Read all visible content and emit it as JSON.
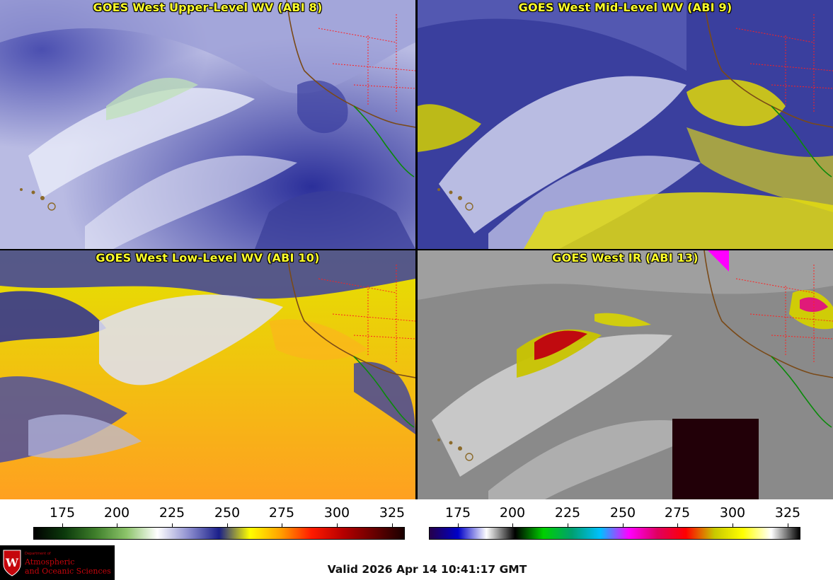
{
  "panels": [
    {
      "id": "upper",
      "title": "GOES West Upper-Level WV (ABI 8)"
    },
    {
      "id": "mid",
      "title": "GOES West Mid-Level WV (ABI 9)"
    },
    {
      "id": "low",
      "title": "GOES West Low-Level WV (ABI 10)"
    },
    {
      "id": "ir",
      "title": "GOES West IR (ABI 13)"
    }
  ],
  "colorbars": [
    {
      "name": "wv",
      "ticks": [
        "175",
        "200",
        "225",
        "250",
        "275",
        "300",
        "325"
      ],
      "colors": [
        "#000000",
        "#0c3a0c",
        "#3f7f2b",
        "#8cc46a",
        "#ffffff",
        "#8f90d0",
        "#1a1f8a",
        "#ffff00",
        "#ffa000",
        "#ff1a00",
        "#b80000",
        "#6a0000",
        "#1a0000"
      ]
    },
    {
      "name": "ir",
      "ticks": [
        "175",
        "200",
        "225",
        "250",
        "275",
        "300",
        "325"
      ],
      "colors": [
        "#25004a",
        "#0000c8",
        "#ffffff",
        "#000000",
        "#00d000",
        "#00a070",
        "#00c0ff",
        "#ff00ff",
        "#e00060",
        "#ff0000",
        "#c8c800",
        "#ffff00",
        "#ffffff",
        "#000000"
      ]
    }
  ],
  "logo": {
    "small": "Department of",
    "line1": "Atmospheric",
    "line2": "and Oceanic Sciences"
  },
  "valid_time": "Valid 2026 Apr 14 10:41:17 GMT"
}
